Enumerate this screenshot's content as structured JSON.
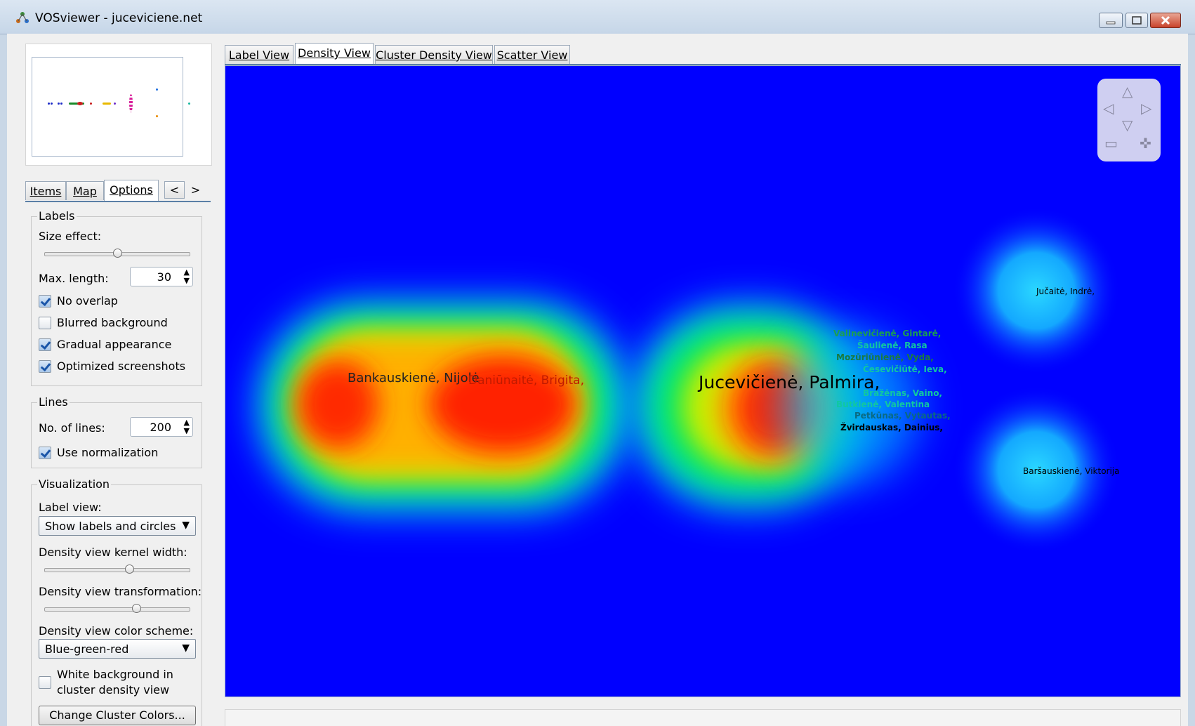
{
  "window": {
    "title": "VOSviewer - juceviciene.net"
  },
  "left_tabs": [
    "Items",
    "Map",
    "Options"
  ],
  "left_tab_arrows": [
    "<",
    ">"
  ],
  "labels_group": {
    "title": "Labels",
    "size_effect_label": "Size effect:",
    "size_effect_value": 0.5,
    "max_length_label": "Max. length:",
    "max_length_value": "30",
    "checkboxes": [
      {
        "label": "No overlap",
        "checked": true
      },
      {
        "label": "Blurred background",
        "checked": false
      },
      {
        "label": "Gradual appearance",
        "checked": true
      },
      {
        "label": "Optimized screenshots",
        "checked": true
      }
    ]
  },
  "lines_group": {
    "title": "Lines",
    "no_of_lines_label": "No. of lines:",
    "no_of_lines_value": "200",
    "use_normalization_label": "Use normalization",
    "use_normalization_checked": true
  },
  "visualization_group": {
    "title": "Visualization",
    "label_view_label": "Label view:",
    "label_view_value": "Show labels and circles",
    "kernel_width_label": "Density view kernel width:",
    "kernel_width_value": 0.58,
    "transformation_label": "Density view transformation:",
    "transformation_value": 0.63,
    "color_scheme_label": "Density view color scheme:",
    "color_scheme_value": "Blue-green-red",
    "white_bg_label_line1": "White background in",
    "white_bg_label_line2": "cluster density view",
    "white_bg_checked": false,
    "change_colors_button": "Change Cluster Colors..."
  },
  "view_tabs": [
    "Label View",
    "Density View",
    "Cluster Density View",
    "Scatter View"
  ],
  "active_view_tab": "Density View",
  "nav_controls": {
    "up": "△",
    "left": "◁",
    "right": "▷",
    "down": "▽",
    "zoom_out": "▭",
    "zoom_in": "✜"
  },
  "density_labels": [
    {
      "text": "Bankauskienė, Nijolė"
    },
    {
      "text": "Daniūnaitė, Brigita,"
    },
    {
      "text": "Jucevičienė, Palmira,"
    },
    {
      "text": "Jučaitė, Indrė,"
    },
    {
      "text": "Valinevičienė, Gintarė,"
    },
    {
      "text": "Šaulienė, Rasa"
    },
    {
      "text": "Mozūriūnienė, Vyda,"
    },
    {
      "text": "Česevičiūtė, Ieva,"
    },
    {
      "text": "Bražėnas, Vaino,"
    },
    {
      "text": "Butkienė, Valentina"
    },
    {
      "text": "Petkūnas, Vytautas,"
    },
    {
      "text": "Žvirdauskas, Dainius,"
    },
    {
      "text": "Baršauskienė, Viktorija"
    }
  ],
  "colors": {
    "density_bg": "#0000ff",
    "tab_accent": "#5b7fa6",
    "window_frame": "#c9d7e6"
  }
}
